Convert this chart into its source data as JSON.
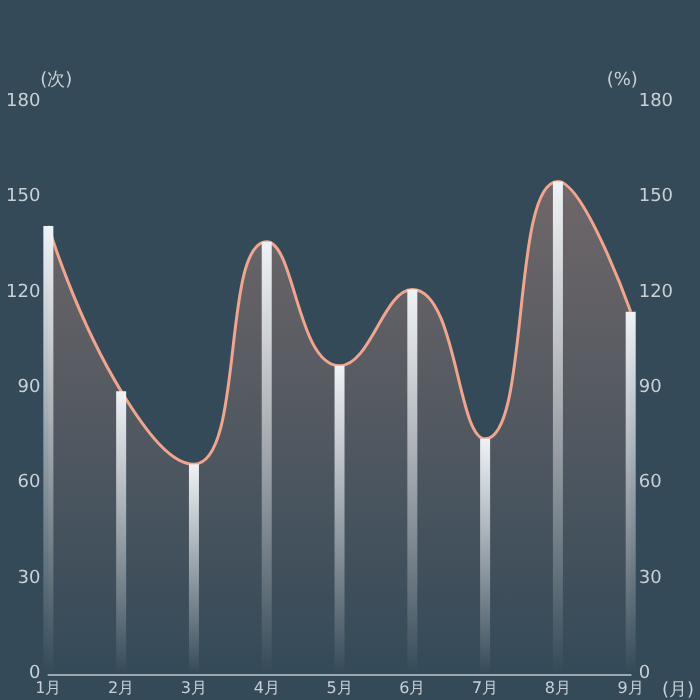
{
  "chart_data": {
    "type": "bar",
    "categories": [
      "1月",
      "2月",
      "3月",
      "4月",
      "5月",
      "6月",
      "7月",
      "8月",
      "9月"
    ],
    "xlabel": "(月)",
    "ylabel": "(次)",
    "y2label": "(%)",
    "series": [
      {
        "color": "#eef2f5",
        "values": [
          141,
          89,
          66,
          136,
          97,
          121,
          74,
          155,
          114
        ]
      },
      {
        "type": "area",
        "axis": "y2",
        "color": "#f0a58e",
        "values": [
          141,
          89,
          66,
          136,
          97,
          121,
          74,
          155,
          114
        ]
      }
    ],
    "ylim": [
      0,
      180
    ],
    "yticks": [
      0,
      30,
      60,
      90,
      120,
      150,
      180
    ],
    "y2lim": [
      0,
      180
    ],
    "y2ticks": [
      0,
      30,
      60,
      90,
      120,
      150,
      180
    ],
    "grid": false,
    "marker": "none"
  }
}
